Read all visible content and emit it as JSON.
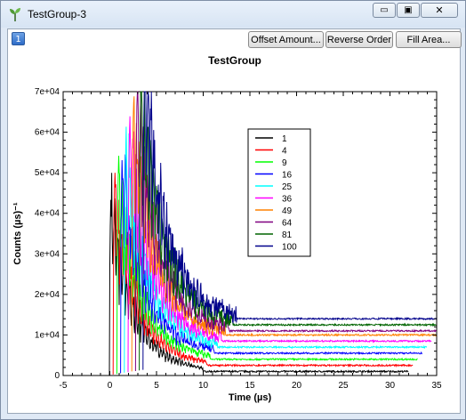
{
  "window": {
    "title": "TestGroup-3",
    "minimize_symbol": "▭",
    "maximize_symbol": "▣",
    "close_symbol": "✕"
  },
  "toolbar": {
    "badge": "1",
    "offset_label": "Offset Amount...",
    "reverse_label": "Reverse Order",
    "fill_label": "Fill Area..."
  },
  "icons": {
    "app": "plant-sprout-icon"
  },
  "chart_data": {
    "type": "line",
    "title": "TestGroup",
    "xlabel": "Time (µs)",
    "ylabel": "Counts (µs)⁻¹",
    "xlim": [
      -5,
      35
    ],
    "ylim": [
      0,
      70000
    ],
    "xticks": [
      "-5",
      "0",
      "5",
      "10",
      "15",
      "20",
      "25",
      "30",
      "35"
    ],
    "yticks": [
      "0",
      "1e+04",
      "2e+04",
      "3e+04",
      "4e+04",
      "5e+04",
      "6e+04",
      "7e+04"
    ],
    "legend_position": "upper-center-right",
    "series": [
      {
        "name": "1",
        "color": "#000000",
        "onset": 0.0,
        "peak": 48000,
        "baseline": 1000,
        "end": 32
      },
      {
        "name": "4",
        "color": "#ff0000",
        "onset": 0.4,
        "peak": 50000,
        "baseline": 2500,
        "end": 32.5
      },
      {
        "name": "9",
        "color": "#00ff00",
        "onset": 0.8,
        "peak": 52000,
        "baseline": 4000,
        "end": 33
      },
      {
        "name": "16",
        "color": "#0000ff",
        "onset": 1.2,
        "peak": 54000,
        "baseline": 5500,
        "end": 33.5
      },
      {
        "name": "25",
        "color": "#00ffff",
        "onset": 1.6,
        "peak": 56000,
        "baseline": 7000,
        "end": 34
      },
      {
        "name": "36",
        "color": "#ff00ff",
        "onset": 2.0,
        "peak": 59000,
        "baseline": 8500,
        "end": 34.5
      },
      {
        "name": "49",
        "color": "#ff8000",
        "onset": 2.4,
        "peak": 61000,
        "baseline": 10000,
        "end": 35
      },
      {
        "name": "64",
        "color": "#800080",
        "onset": 2.8,
        "peak": 63000,
        "baseline": 11000,
        "end": 35
      },
      {
        "name": "81",
        "color": "#006400",
        "onset": 3.2,
        "peak": 65000,
        "baseline": 12500,
        "end": 35
      },
      {
        "name": "100",
        "color": "#00008b",
        "onset": 3.6,
        "peak": 67000,
        "baseline": 14000,
        "end": 35
      }
    ]
  }
}
